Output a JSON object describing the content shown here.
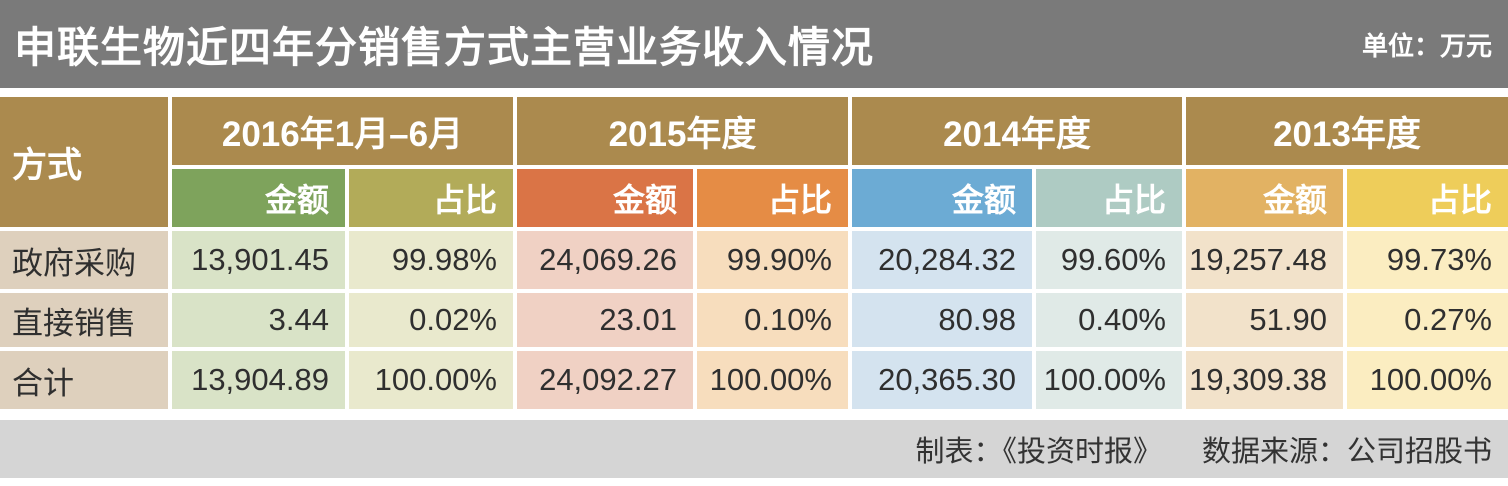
{
  "header": {
    "title": "申联生物近四年分销售方式主营业务收入情况",
    "unit": "单位：万元"
  },
  "table": {
    "corner_label": "方式",
    "year_groups": [
      {
        "label": "2016年1月–6月",
        "amount_label": "金额",
        "ratio_label": "占比"
      },
      {
        "label": "2015年度",
        "amount_label": "金额",
        "ratio_label": "占比"
      },
      {
        "label": "2014年度",
        "amount_label": "金额",
        "ratio_label": "占比"
      },
      {
        "label": "2013年度",
        "amount_label": "金额",
        "ratio_label": "占比"
      }
    ],
    "rows": [
      {
        "label": "政府采购",
        "values": [
          "13,901.45",
          "99.98%",
          "24,069.26",
          "99.90%",
          "20,284.32",
          "99.60%",
          "19,257.48",
          "99.73%"
        ]
      },
      {
        "label": "直接销售",
        "values": [
          "3.44",
          "0.02%",
          "23.01",
          "0.10%",
          "80.98",
          "0.40%",
          "51.90",
          "0.27%"
        ]
      },
      {
        "label": "合计",
        "values": [
          "13,904.89",
          "100.00%",
          "24,092.27",
          "100.00%",
          "20,365.30",
          "100.00%",
          "19,309.38",
          "100.00%"
        ]
      }
    ]
  },
  "footer": {
    "credit": "制表：《投资时报》",
    "source": "数据来源：公司招股书"
  },
  "colors": {
    "title_bar": "#7a7a7a",
    "header_brown": "#ab8a4e",
    "amount_header_2016": "#7ea35c",
    "ratio_header_2016": "#b2ab59",
    "amount_header_2015": "#da7446",
    "ratio_header_2015": "#e58c45",
    "amount_header_2014": "#6cabd4",
    "ratio_header_2014": "#aecbc3",
    "amount_header_2013": "#e2b263",
    "ratio_header_2013": "#eecd5a",
    "row_label_cell": "#ded0bd",
    "footer_bar": "#d5d5d5"
  },
  "chart_data": {
    "type": "table",
    "title": "申联生物近四年分销售方式主营业务收入情况",
    "unit": "万元",
    "periods": [
      "2016年1月–6月",
      "2015年度",
      "2014年度",
      "2013年度"
    ],
    "sub_columns": [
      "金额",
      "占比"
    ],
    "rows": [
      {
        "label": "政府采购",
        "amounts": [
          13901.45,
          24069.26,
          20284.32,
          19257.48
        ],
        "ratios_pct": [
          99.98,
          99.9,
          99.6,
          99.73
        ]
      },
      {
        "label": "直接销售",
        "amounts": [
          3.44,
          23.01,
          80.98,
          51.9
        ],
        "ratios_pct": [
          0.02,
          0.1,
          0.4,
          0.27
        ]
      },
      {
        "label": "合计",
        "amounts": [
          13904.89,
          24092.27,
          20365.3,
          19309.38
        ],
        "ratios_pct": [
          100.0,
          100.0,
          100.0,
          100.0
        ]
      }
    ],
    "credit": "制表：《投资时报》",
    "source": "数据来源：公司招股书"
  }
}
